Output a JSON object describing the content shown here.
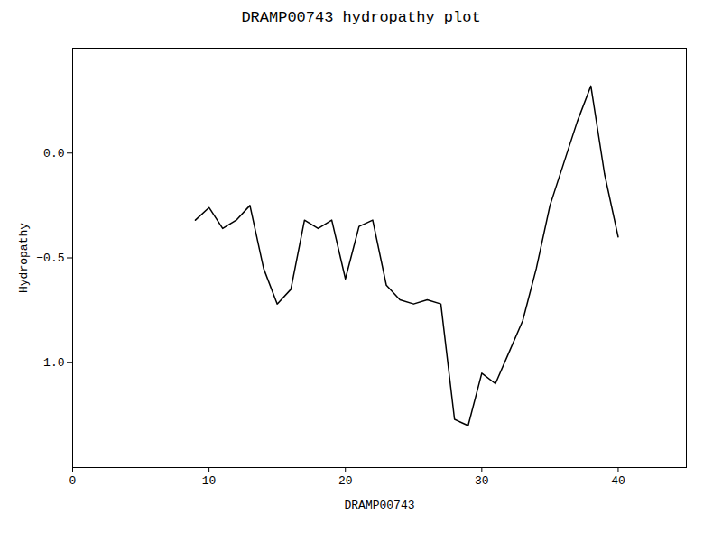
{
  "chart_data": {
    "type": "line",
    "title": "DRAMP00743 hydropathy plot",
    "xlabel": "DRAMP00743",
    "ylabel": "Hydropathy",
    "x": [
      9,
      10,
      11,
      12,
      13,
      14,
      15,
      16,
      17,
      18,
      19,
      20,
      21,
      22,
      23,
      24,
      25,
      26,
      27,
      28,
      29,
      30,
      31,
      32,
      33,
      34,
      35,
      36,
      37,
      38,
      39,
      40
    ],
    "values": [
      -0.32,
      -0.26,
      -0.36,
      -0.32,
      -0.25,
      -0.55,
      -0.72,
      -0.65,
      -0.32,
      -0.36,
      -0.32,
      -0.6,
      -0.35,
      -0.32,
      -0.63,
      -0.7,
      -0.72,
      -0.7,
      -0.72,
      -1.27,
      -1.3,
      -1.05,
      -1.1,
      -0.95,
      -0.8,
      -0.55,
      -0.25,
      -0.05,
      0.15,
      0.32,
      -0.1,
      -0.4
    ],
    "color": "#000000",
    "xlim": [
      0,
      45
    ],
    "ylim": [
      -1.5,
      0.5
    ],
    "xticks": [
      0,
      10,
      20,
      30,
      40
    ],
    "yticks": [
      {
        "value": -1.0,
        "label": "−1.0"
      },
      {
        "value": -0.5,
        "label": "−0.5"
      },
      {
        "value": 0.0,
        "label": "0.0"
      }
    ],
    "grid": false
  }
}
